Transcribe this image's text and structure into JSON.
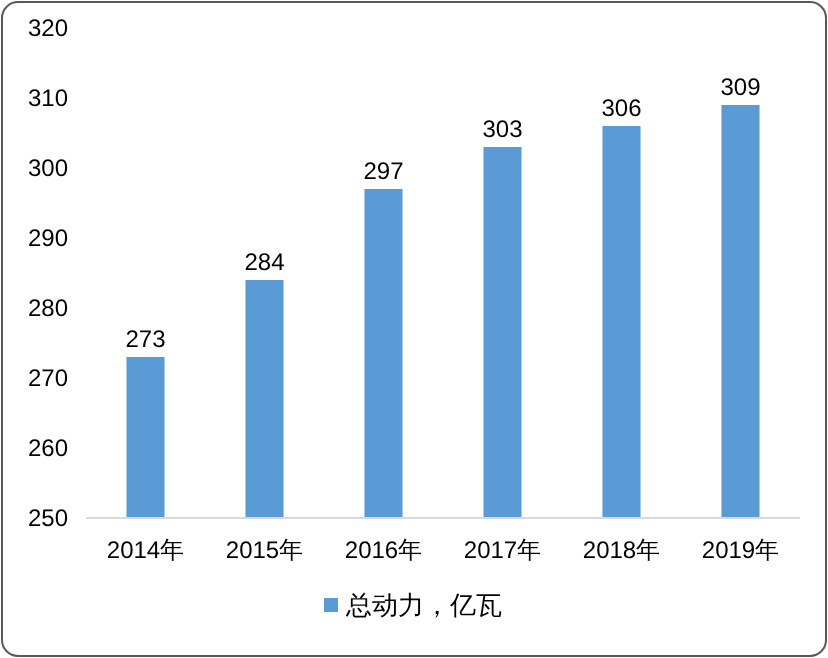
{
  "chart_data": {
    "type": "bar",
    "categories": [
      "2014年",
      "2015年",
      "2016年",
      "2017年",
      "2018年",
      "2019年"
    ],
    "series": [
      {
        "name": "总动力，亿瓦",
        "color": "#5b9bd5",
        "values": [
          273,
          284,
          297,
          303,
          306,
          309
        ]
      }
    ],
    "ylim": [
      250,
      320
    ],
    "yticks": [
      250,
      260,
      270,
      280,
      290,
      300,
      310,
      320
    ],
    "data_labels": true,
    "legend": "bottom",
    "grid": false
  }
}
